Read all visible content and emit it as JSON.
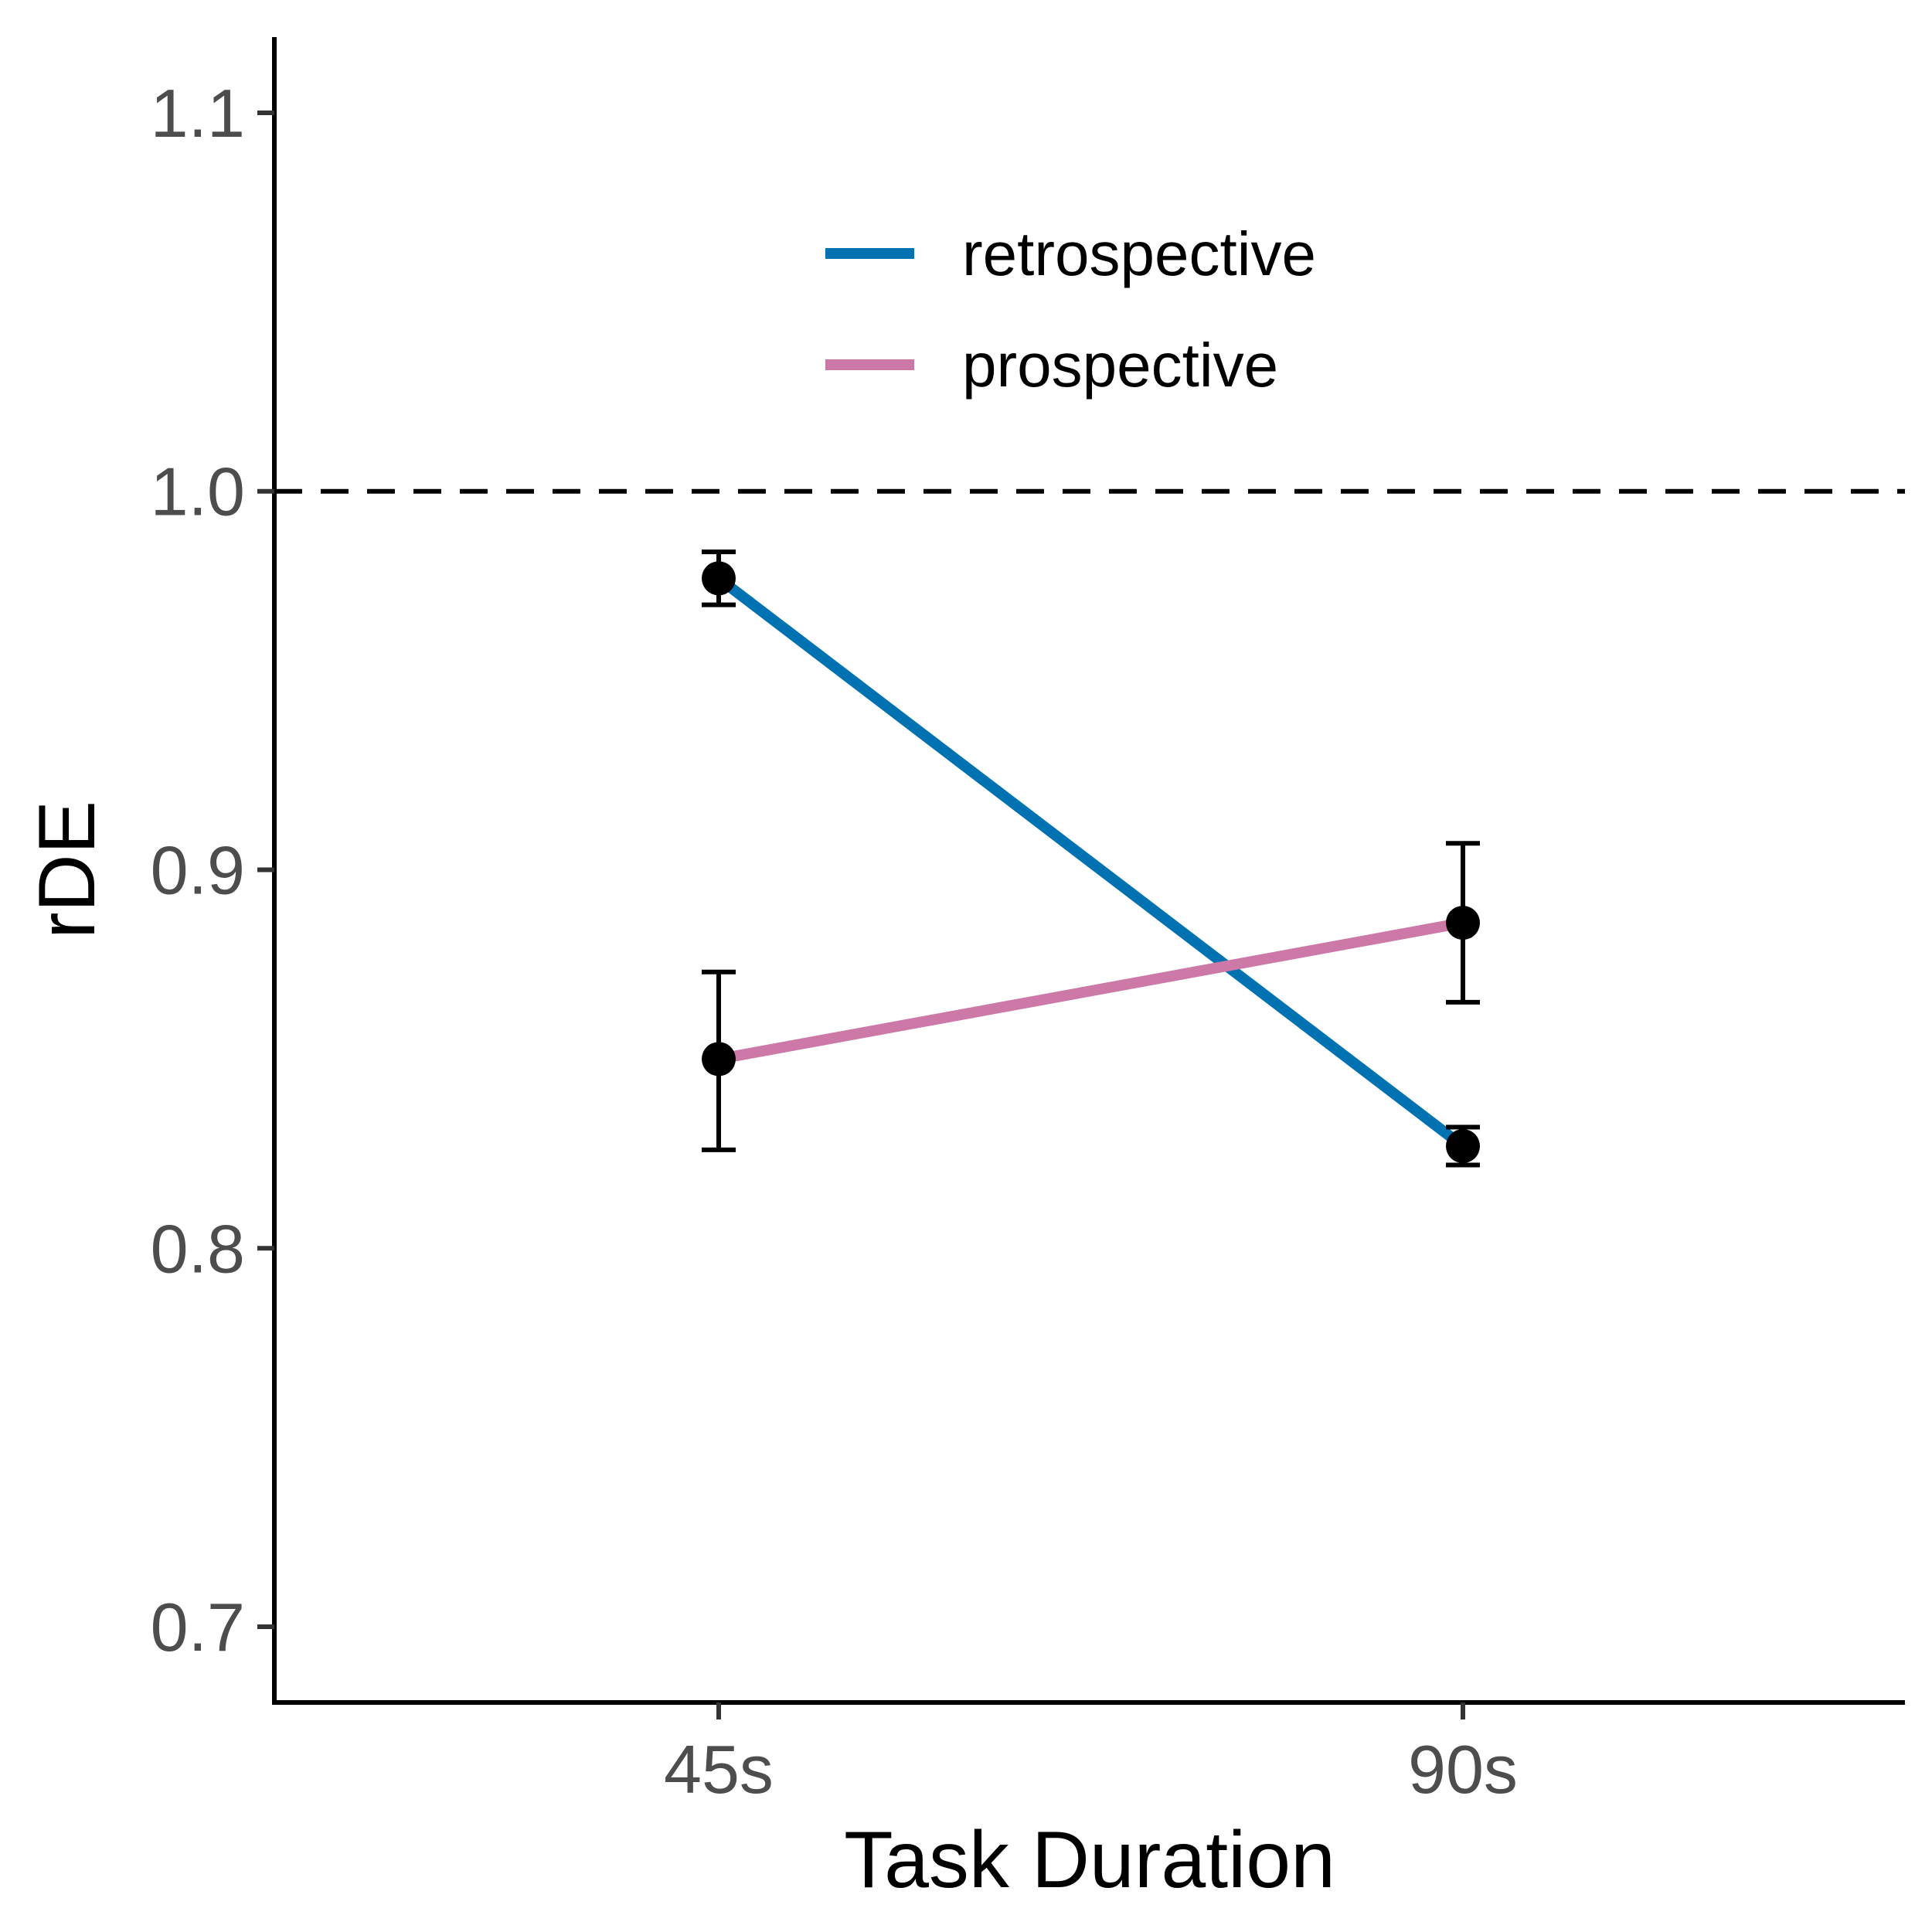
{
  "chart_data": {
    "type": "line",
    "xlabel": "Task Duration",
    "ylabel": "rDE",
    "categories": [
      "45s",
      "90s"
    ],
    "ylim": [
      0.68,
      1.12
    ],
    "yticks": [
      0.7,
      0.8,
      0.9,
      1.0,
      1.1
    ],
    "ytick_labels": [
      "0.7",
      "0.8",
      "0.9",
      "1.0",
      "1.1"
    ],
    "reference_line": {
      "y": 1.0,
      "style": "dashed"
    },
    "grid": false,
    "legend_position": "top-right inside plot",
    "series": [
      {
        "name": "retrospective",
        "color": "#0072B2",
        "values": [
          0.977,
          0.827
        ],
        "error_low": [
          0.97,
          0.822
        ],
        "error_high": [
          0.984,
          0.832
        ]
      },
      {
        "name": "prospective",
        "color": "#CC79A7",
        "values": [
          0.85,
          0.886
        ],
        "error_low": [
          0.826,
          0.865
        ],
        "error_high": [
          0.873,
          0.907
        ]
      }
    ]
  }
}
